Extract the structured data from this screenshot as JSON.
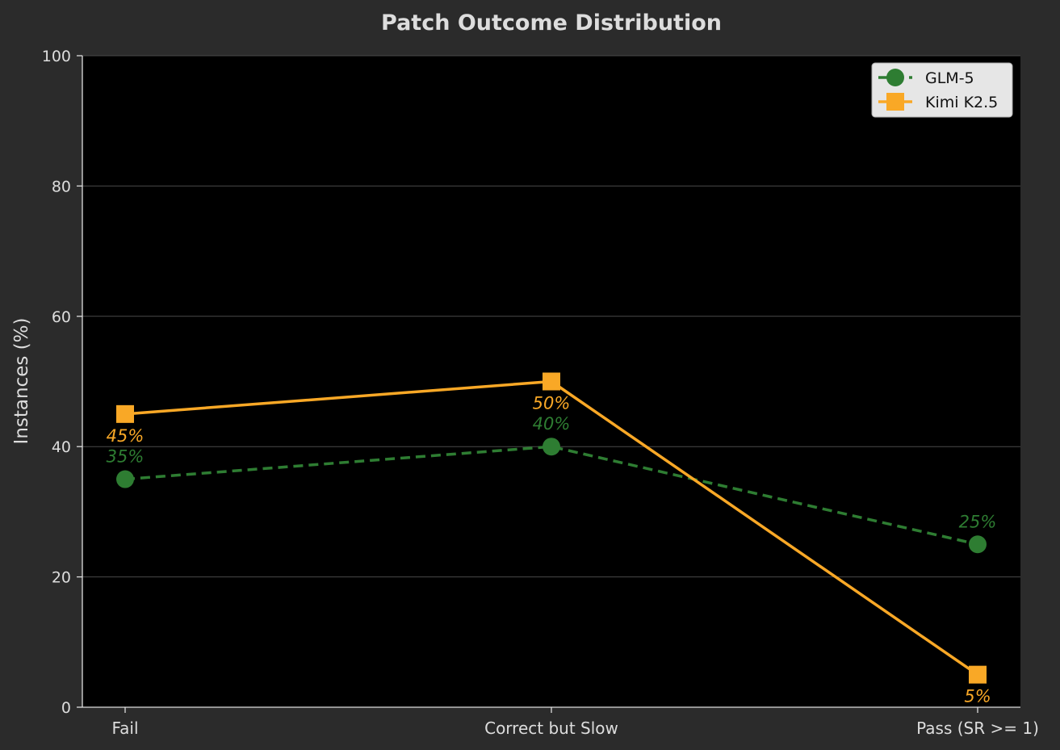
{
  "chart_data": {
    "type": "line",
    "title": "Patch Outcome Distribution",
    "xlabel": "",
    "ylabel": "Instances (%)",
    "categories": [
      "Fail",
      "Correct but Slow",
      "Pass (SR >= 1)"
    ],
    "ylim": [
      0,
      100
    ],
    "yticks": [
      0,
      20,
      40,
      60,
      80,
      100
    ],
    "grid": true,
    "legend_position": "top-right",
    "series": [
      {
        "name": "GLM-5",
        "values": [
          35,
          40,
          25
        ],
        "labels": [
          "35%",
          "40%",
          "25%"
        ],
        "color": "#2e7d32",
        "marker": "circle",
        "line_style": "dashed"
      },
      {
        "name": "Kimi K2.5",
        "values": [
          45,
          50,
          5
        ],
        "labels": [
          "45%",
          "50%",
          "5%"
        ],
        "color": "#f9a826",
        "marker": "square",
        "line_style": "solid"
      }
    ]
  },
  "colors": {
    "figure_background": "#2b2b2b",
    "plot_background": "#000000",
    "text": "#dddddd",
    "grid": "#4a4a4a",
    "legend_background": "#e6e6e6"
  }
}
